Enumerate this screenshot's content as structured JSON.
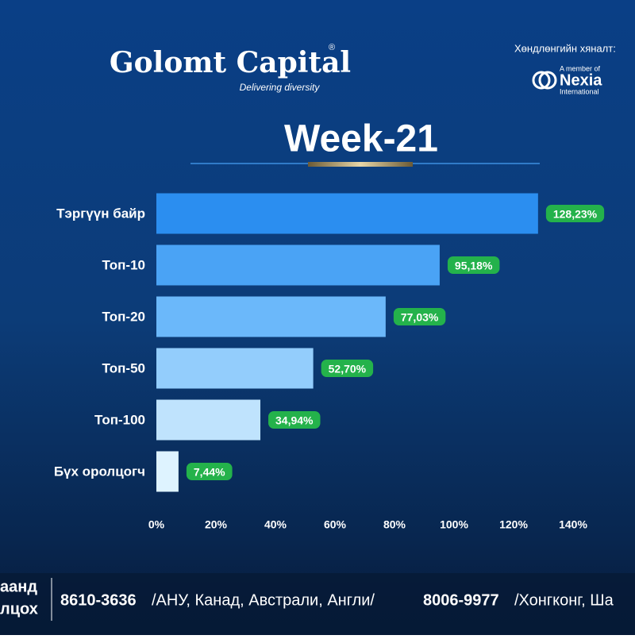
{
  "header": {
    "brand": "Golomt Capital",
    "registered": "®",
    "tagline": "Delivering diversity",
    "audit_label": "Хөндлөнгийн хяналт:",
    "member_of": "A member of",
    "network": "Nexia",
    "network_sub": "International"
  },
  "chart_data": {
    "type": "bar",
    "orientation": "horizontal",
    "title": "Week-21",
    "categories": [
      "Тэргүүн байр",
      "Топ-10",
      "Топ-20",
      "Топ-50",
      "Топ-100",
      "Бүх оролцогч"
    ],
    "values": [
      128.23,
      95.18,
      77.03,
      52.7,
      34.94,
      7.44
    ],
    "value_labels": [
      "128,23%",
      "95,18%",
      "77,03%",
      "52,70%",
      "34,94%",
      "7,44%"
    ],
    "colors": [
      "#2b8ef0",
      "#4aa3f5",
      "#6bb8fa",
      "#93cdfc",
      "#bfe3fd",
      "#def3ff"
    ],
    "label_color": "#24b24b",
    "xlim": [
      0,
      140
    ],
    "xticks": [
      {
        "value": 0,
        "label": "0%"
      },
      {
        "value": 20,
        "label": "20%"
      },
      {
        "value": 40,
        "label": "40%"
      },
      {
        "value": 60,
        "label": "60%"
      },
      {
        "value": 80,
        "label": "80%"
      },
      {
        "value": 100,
        "label": "100%"
      },
      {
        "value": 120,
        "label": "120%"
      },
      {
        "value": 140,
        "label": "140%"
      }
    ],
    "grid": false
  },
  "footer": {
    "left_line1": "аанд",
    "left_line2": "лцох",
    "phone1": "8610-3636",
    "phone1_regions": "/АНУ, Канад, Австрали, Англи/",
    "phone2": "8006-9977",
    "phone2_regions": "/Хонгконг, Ша"
  }
}
